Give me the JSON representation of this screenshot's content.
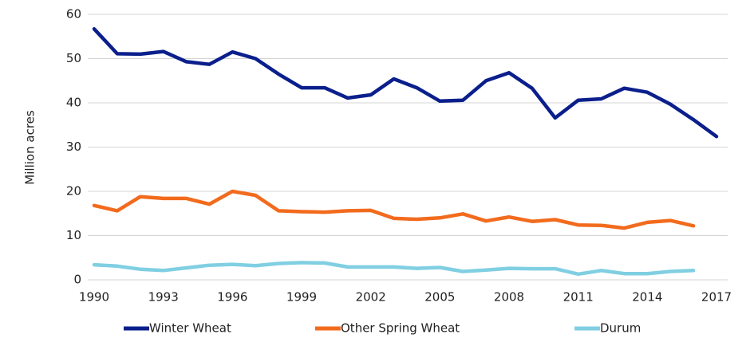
{
  "chart_data": {
    "type": "line",
    "y_label": "Million acres",
    "x": [
      1990,
      1991,
      1992,
      1993,
      1994,
      1995,
      1996,
      1997,
      1998,
      1999,
      2000,
      2001,
      2002,
      2003,
      2004,
      2005,
      2006,
      2007,
      2008,
      2009,
      2010,
      2011,
      2012,
      2013,
      2014,
      2015,
      2016,
      2017
    ],
    "xlim": [
      1990,
      2017
    ],
    "xticks": [
      1990,
      1993,
      1996,
      1999,
      2002,
      2005,
      2008,
      2011,
      2014,
      2017
    ],
    "ylim": [
      0,
      60
    ],
    "yticks": [
      0,
      10,
      20,
      30,
      40,
      50,
      60
    ],
    "grid": true,
    "legend": "bottom",
    "series": [
      {
        "name": "Winter Wheat",
        "color": "#0b1f8c",
        "values": [
          56.7,
          51.1,
          51.0,
          51.6,
          49.3,
          48.7,
          51.5,
          50.0,
          46.5,
          43.4,
          43.4,
          41.1,
          41.8,
          45.4,
          43.4,
          40.4,
          40.6,
          45.0,
          46.8,
          43.3,
          36.6,
          40.6,
          40.9,
          43.3,
          42.4,
          39.7,
          36.2,
          32.4
        ]
      },
      {
        "name": "Other Spring Wheat",
        "color": "#f26b1d",
        "values": [
          16.8,
          15.6,
          18.8,
          18.4,
          18.4,
          17.1,
          20.0,
          19.1,
          15.6,
          15.4,
          15.3,
          15.6,
          15.7,
          13.9,
          13.7,
          14.0,
          14.9,
          13.3,
          14.2,
          13.2,
          13.6,
          12.4,
          12.3,
          11.7,
          13.0,
          13.4,
          12.2,
          null
        ]
      },
      {
        "name": "Durum",
        "color": "#80cfe2",
        "values": [
          3.4,
          3.1,
          2.4,
          2.1,
          2.7,
          3.3,
          3.5,
          3.2,
          3.7,
          3.9,
          3.8,
          2.9,
          2.9,
          2.9,
          2.6,
          2.8,
          1.9,
          2.2,
          2.6,
          2.5,
          2.5,
          1.3,
          2.1,
          1.4,
          1.4,
          1.9,
          2.1,
          null
        ]
      }
    ]
  }
}
